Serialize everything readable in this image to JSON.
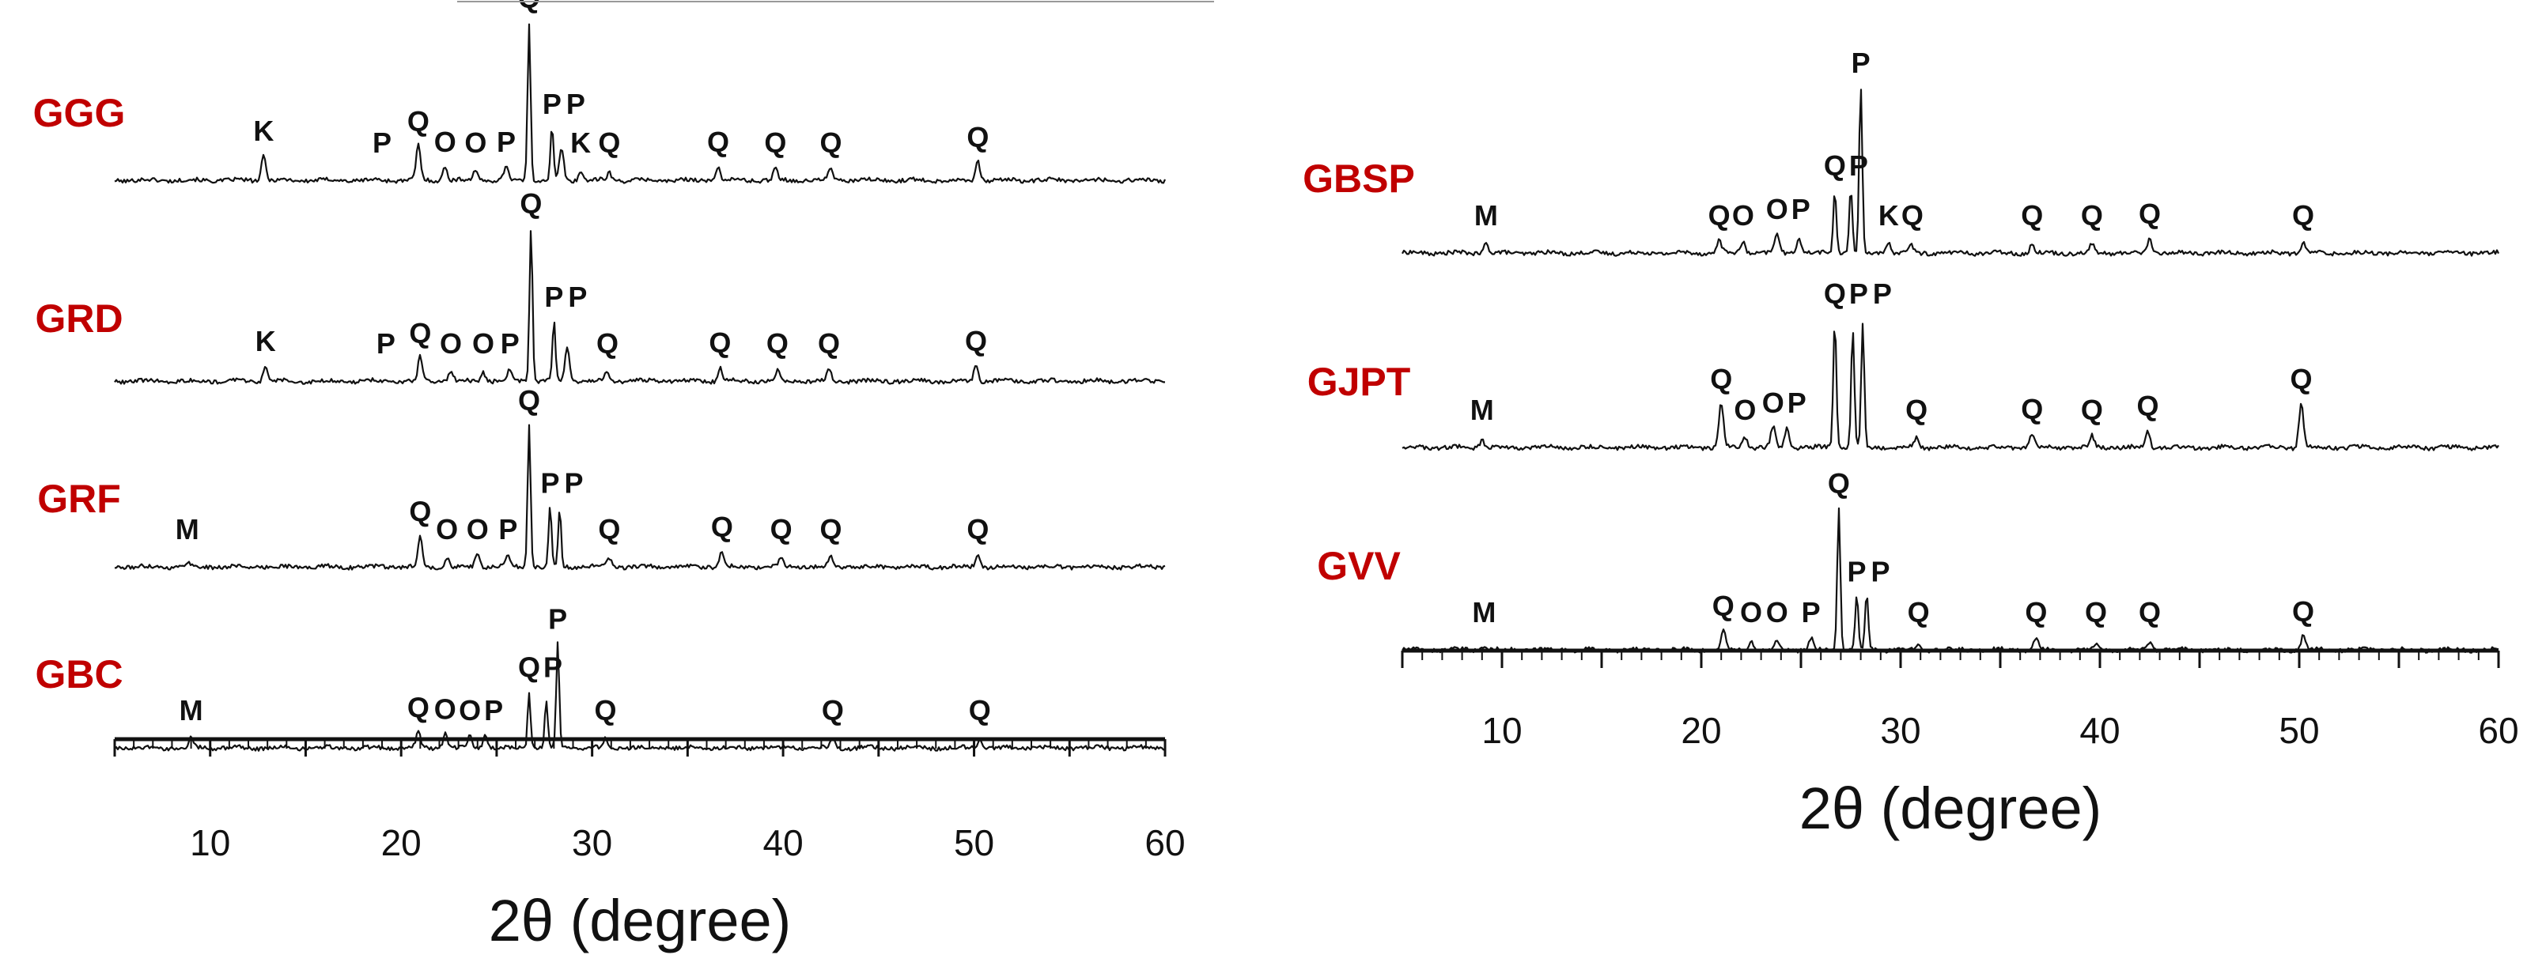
{
  "chart_data": [
    {
      "type": "line",
      "panel": "left",
      "xlabel": "2θ (degree)",
      "ylabel": "",
      "xlim": [
        5,
        60
      ],
      "xticks": [
        10,
        20,
        30,
        40,
        50,
        60
      ],
      "series": [
        {
          "name": "GGG",
          "peaks": [
            {
              "x": 12.8,
              "h": 0.16,
              "label": "K"
            },
            {
              "x": 19.0,
              "h": 0.0,
              "label": "P"
            },
            {
              "x": 20.9,
              "h": 0.22,
              "label": "Q"
            },
            {
              "x": 22.3,
              "h": 0.09,
              "label": "O"
            },
            {
              "x": 23.9,
              "h": 0.07,
              "label": "O"
            },
            {
              "x": 25.5,
              "h": 0.09,
              "label": "P"
            },
            {
              "x": 26.7,
              "h": 1.0,
              "label": "Q"
            },
            {
              "x": 27.9,
              "h": 0.33,
              "label": "P"
            },
            {
              "x": 28.4,
              "h": 0.2,
              "label": "P"
            },
            {
              "x": 29.4,
              "h": 0.06,
              "label": "K"
            },
            {
              "x": 30.9,
              "h": 0.05,
              "label": "Q"
            },
            {
              "x": 36.6,
              "h": 0.09,
              "label": "Q"
            },
            {
              "x": 39.6,
              "h": 0.08,
              "label": "Q"
            },
            {
              "x": 42.5,
              "h": 0.08,
              "label": "Q"
            },
            {
              "x": 50.2,
              "h": 0.12,
              "label": "Q"
            }
          ]
        },
        {
          "name": "GRD",
          "peaks": [
            {
              "x": 12.9,
              "h": 0.1,
              "label": "K"
            },
            {
              "x": 19.2,
              "h": 0.0,
              "label": "P"
            },
            {
              "x": 21.0,
              "h": 0.15,
              "label": "Q"
            },
            {
              "x": 22.6,
              "h": 0.06,
              "label": "O"
            },
            {
              "x": 24.3,
              "h": 0.06,
              "label": "O"
            },
            {
              "x": 25.7,
              "h": 0.07,
              "label": "P"
            },
            {
              "x": 26.8,
              "h": 0.97,
              "label": "Q"
            },
            {
              "x": 28.0,
              "h": 0.38,
              "label": "P"
            },
            {
              "x": 28.7,
              "h": 0.22,
              "label": "P"
            },
            {
              "x": 30.8,
              "h": 0.06,
              "label": "Q"
            },
            {
              "x": 36.7,
              "h": 0.09,
              "label": "Q"
            },
            {
              "x": 39.7,
              "h": 0.06,
              "label": "Q"
            },
            {
              "x": 42.4,
              "h": 0.07,
              "label": "Q"
            },
            {
              "x": 50.1,
              "h": 0.1,
              "label": "Q"
            }
          ]
        },
        {
          "name": "GRF",
          "peaks": [
            {
              "x": 8.8,
              "h": 0.03,
              "label": "M"
            },
            {
              "x": 21.0,
              "h": 0.22,
              "label": "Q"
            },
            {
              "x": 22.4,
              "h": 0.07,
              "label": "O"
            },
            {
              "x": 24.0,
              "h": 0.09,
              "label": "O"
            },
            {
              "x": 25.6,
              "h": 0.08,
              "label": "P"
            },
            {
              "x": 26.7,
              "h": 1.0,
              "label": "Q"
            },
            {
              "x": 27.8,
              "h": 0.42,
              "label": "P"
            },
            {
              "x": 28.3,
              "h": 0.4,
              "label": "P"
            },
            {
              "x": 30.9,
              "h": 0.06,
              "label": "Q"
            },
            {
              "x": 36.8,
              "h": 0.11,
              "label": "Q"
            },
            {
              "x": 39.9,
              "h": 0.06,
              "label": "Q"
            },
            {
              "x": 42.5,
              "h": 0.07,
              "label": "Q"
            },
            {
              "x": 50.2,
              "h": 0.09,
              "label": "Q"
            }
          ]
        },
        {
          "name": "GBC",
          "peaks": [
            {
              "x": 9.0,
              "h": 0.07,
              "label": "M"
            },
            {
              "x": 20.9,
              "h": 0.12,
              "label": "Q"
            },
            {
              "x": 22.3,
              "h": 0.11,
              "label": "O"
            },
            {
              "x": 23.6,
              "h": 0.09,
              "label": "O"
            },
            {
              "x": 24.4,
              "h": 0.1,
              "label": "P"
            },
            {
              "x": 26.7,
              "h": 0.42,
              "label": "Q"
            },
            {
              "x": 27.6,
              "h": 0.36,
              "label": "P"
            },
            {
              "x": 28.2,
              "h": 0.78,
              "label": "P"
            },
            {
              "x": 30.7,
              "h": 0.07,
              "label": "Q"
            },
            {
              "x": 42.6,
              "h": 0.07,
              "label": "Q"
            },
            {
              "x": 50.3,
              "h": 0.07,
              "label": "Q"
            }
          ]
        }
      ]
    },
    {
      "type": "line",
      "panel": "right",
      "xlabel": "2θ (degree)",
      "ylabel": "",
      "xlim": [
        5,
        60
      ],
      "xticks": [
        10,
        20,
        30,
        40,
        50,
        60
      ],
      "series": [
        {
          "name": "GBSP",
          "peaks": [
            {
              "x": 9.2,
              "h": 0.06,
              "label": "M"
            },
            {
              "x": 20.9,
              "h": 0.08,
              "label": "Q"
            },
            {
              "x": 22.1,
              "h": 0.07,
              "label": "O"
            },
            {
              "x": 23.8,
              "h": 0.12,
              "label": "O"
            },
            {
              "x": 24.9,
              "h": 0.1,
              "label": "P"
            },
            {
              "x": 26.7,
              "h": 0.38,
              "label": "Q"
            },
            {
              "x": 27.5,
              "h": 0.4,
              "label": "P"
            },
            {
              "x": 28.0,
              "h": 1.0,
              "label": "P"
            },
            {
              "x": 29.4,
              "h": 0.06,
              "label": "K"
            },
            {
              "x": 30.5,
              "h": 0.05,
              "label": "Q"
            },
            {
              "x": 36.6,
              "h": 0.05,
              "label": "Q"
            },
            {
              "x": 39.6,
              "h": 0.05,
              "label": "Q"
            },
            {
              "x": 42.5,
              "h": 0.09,
              "label": "Q"
            },
            {
              "x": 50.2,
              "h": 0.06,
              "label": "Q"
            }
          ]
        },
        {
          "name": "GJPT",
          "peaks": [
            {
              "x": 9.0,
              "h": 0.05,
              "label": "M"
            },
            {
              "x": 21.0,
              "h": 0.28,
              "label": "Q"
            },
            {
              "x": 22.2,
              "h": 0.07,
              "label": "O"
            },
            {
              "x": 23.6,
              "h": 0.13,
              "label": "O"
            },
            {
              "x": 24.3,
              "h": 0.13,
              "label": "P"
            },
            {
              "x": 26.7,
              "h": 0.82,
              "label": "Q"
            },
            {
              "x": 27.6,
              "h": 0.75,
              "label": "P"
            },
            {
              "x": 28.1,
              "h": 0.78,
              "label": "P"
            },
            {
              "x": 30.8,
              "h": 0.06,
              "label": "Q"
            },
            {
              "x": 36.6,
              "h": 0.09,
              "label": "Q"
            },
            {
              "x": 39.6,
              "h": 0.07,
              "label": "Q"
            },
            {
              "x": 42.4,
              "h": 0.11,
              "label": "Q"
            },
            {
              "x": 50.1,
              "h": 0.28,
              "label": "Q"
            }
          ]
        },
        {
          "name": "GVV",
          "peaks": [
            {
              "x": 9.1,
              "h": 0.03,
              "label": "M"
            },
            {
              "x": 21.1,
              "h": 0.14,
              "label": "Q"
            },
            {
              "x": 22.5,
              "h": 0.06,
              "label": "O"
            },
            {
              "x": 23.8,
              "h": 0.07,
              "label": "O"
            },
            {
              "x": 25.5,
              "h": 0.08,
              "label": "P"
            },
            {
              "x": 26.9,
              "h": 1.0,
              "label": "Q"
            },
            {
              "x": 27.8,
              "h": 0.38,
              "label": "P"
            },
            {
              "x": 28.3,
              "h": 0.4,
              "label": "P"
            },
            {
              "x": 30.9,
              "h": 0.05,
              "label": "Q"
            },
            {
              "x": 36.8,
              "h": 0.08,
              "label": "Q"
            },
            {
              "x": 39.8,
              "h": 0.04,
              "label": "Q"
            },
            {
              "x": 42.5,
              "h": 0.05,
              "label": "Q"
            },
            {
              "x": 50.2,
              "h": 0.1,
              "label": "Q"
            }
          ]
        }
      ]
    }
  ]
}
